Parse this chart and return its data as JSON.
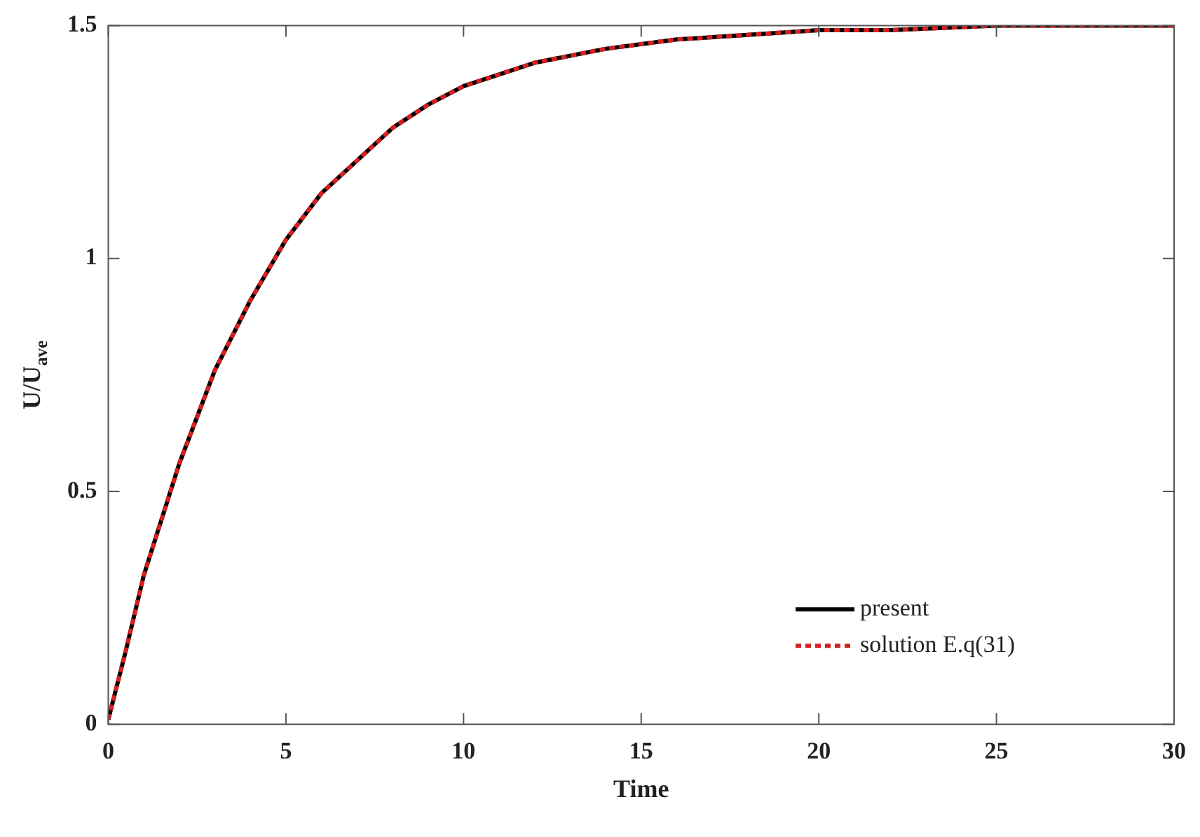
{
  "chart_data": {
    "type": "line",
    "xlabel": "Time",
    "ylabel": "U/U$_{ave}$",
    "x": [
      0,
      0.5,
      1,
      1.5,
      2,
      3,
      4,
      5,
      6,
      7,
      8,
      9,
      10,
      12,
      14,
      16,
      18,
      20,
      22,
      25,
      30
    ],
    "series": [
      {
        "name": "present",
        "color": "#000000",
        "line_style": "solid",
        "values": [
          0.01,
          0.16,
          0.32,
          0.44,
          0.56,
          0.76,
          0.91,
          1.04,
          1.14,
          1.21,
          1.28,
          1.33,
          1.37,
          1.42,
          1.45,
          1.47,
          1.48,
          1.49,
          1.49,
          1.5,
          1.5
        ]
      },
      {
        "name": "solution E.q(31)",
        "color": "#d62020",
        "line_style": "dotted",
        "values": [
          0.01,
          0.16,
          0.32,
          0.44,
          0.56,
          0.76,
          0.91,
          1.04,
          1.14,
          1.21,
          1.28,
          1.33,
          1.37,
          1.42,
          1.45,
          1.47,
          1.48,
          1.49,
          1.49,
          1.5,
          1.5
        ]
      }
    ],
    "xlim": [
      0,
      30
    ],
    "xticks": [
      0,
      5,
      10,
      15,
      20,
      25,
      30
    ],
    "ylim": [
      0,
      1.5
    ],
    "yticks": [
      0,
      0.5,
      1,
      1.5
    ],
    "grid": false,
    "legend": "bottom right",
    "marker": "none"
  }
}
